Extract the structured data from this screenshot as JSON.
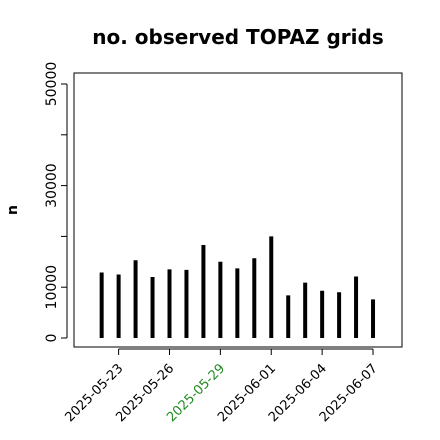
{
  "chart_data": {
    "type": "bar",
    "title": "no. observed TOPAZ grids",
    "xlabel": "",
    "ylabel": "n",
    "ylim": [
      0,
      52000
    ],
    "grid": false,
    "x_start": "2025-05-21",
    "x": [
      "2025-05-22",
      "2025-05-23",
      "2025-05-24",
      "2025-05-25",
      "2025-05-26",
      "2025-05-27",
      "2025-05-28",
      "2025-05-29",
      "2025-05-30",
      "2025-05-31",
      "2025-06-01",
      "2025-06-02",
      "2025-06-03",
      "2025-06-04",
      "2025-06-05",
      "2025-06-06",
      "2025-06-07"
    ],
    "values": [
      12900,
      12500,
      15300,
      12000,
      13500,
      13400,
      18300,
      15000,
      13700,
      15700,
      20000,
      8400,
      10900,
      9300,
      9000,
      12100,
      7600
    ],
    "yticks": [
      0,
      10000,
      20000,
      30000,
      40000,
      50000
    ],
    "ytick_labels": [
      "0",
      "10000",
      "",
      "30000",
      "",
      "50000"
    ],
    "xticks": [
      "2025-05-23",
      "2025-05-26",
      "2025-05-29",
      "2025-06-01",
      "2025-06-04",
      "2025-06-07"
    ],
    "xtick_labels": [
      "2025-05-23",
      "2025-05-26",
      "2025-05-29",
      "2025-06-01",
      "2025-06-04",
      "2025-06-07"
    ],
    "highlight_label": "2025-05-29",
    "colors": {
      "bars": "#000000",
      "text": "#000000",
      "highlight": "#228B22"
    }
  }
}
